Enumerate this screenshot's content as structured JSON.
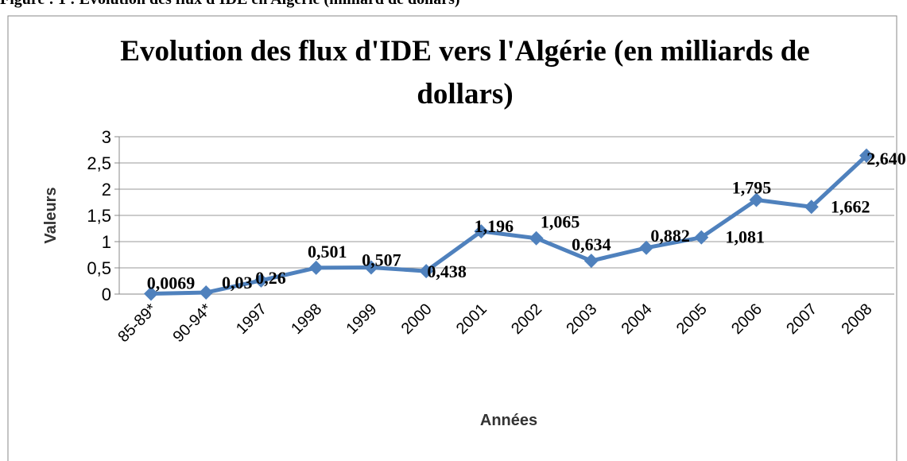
{
  "caption": "Figure : 1 : Evolution des flux d'IDE en Algérie (milliard de dollars)",
  "chart_data": {
    "type": "line",
    "title": "Evolution des flux d'IDE vers l'Algérie (en milliards de dollars)",
    "x_label": "Années",
    "y_label": "Valeurs",
    "categories": [
      "85-89*",
      "90-94*",
      "1997",
      "1998",
      "1999",
      "2000",
      "2001",
      "2002",
      "2003",
      "2004",
      "2005",
      "2006",
      "2007",
      "2008"
    ],
    "series": [
      {
        "name": "Valeurs",
        "color": "#4f81bd",
        "values": [
          0.0069,
          0.03,
          0.26,
          0.501,
          0.507,
          0.438,
          1.196,
          1.065,
          0.634,
          0.882,
          1.081,
          1.795,
          1.662,
          2.64
        ],
        "value_labels": [
          "0,0069",
          "0,03",
          "0,26",
          "0,501",
          "0,507",
          "0,438",
          "1,196",
          "1,065",
          "0,634",
          "0,882",
          "1,081",
          "1,795",
          "1,662",
          "2,640"
        ]
      }
    ],
    "ylim": [
      0,
      3
    ],
    "yticks": [
      0,
      {
        "value": 0.5,
        "label": "0,5"
      },
      1,
      {
        "value": 1.5,
        "label": "1,5"
      },
      2,
      {
        "value": 2.5,
        "label": "2,5"
      },
      3
    ],
    "grid": true
  }
}
